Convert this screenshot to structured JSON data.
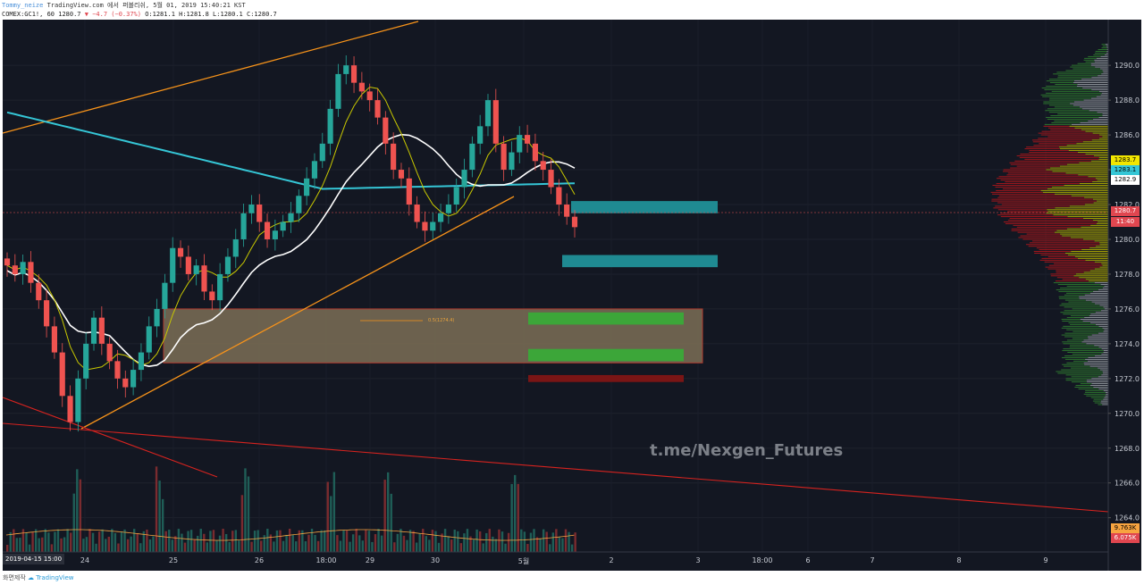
{
  "header": {
    "user": "Tommy_neize",
    "published": "TradingView.com 에서 퍼블리쉬, 5월 01, 2019 15:40:21 KST",
    "symbol": "COMEX:GC1!, 60",
    "price": "1280.7",
    "change": "−4.7 (−0.37%)",
    "ohlc": "O:1281.1 H:1281.8 L:1280.1 C:1280.7"
  },
  "price_axis": {
    "ticks": [
      "1290.0",
      "1288.0",
      "1286.0",
      "1284.0",
      "1282.0",
      "1280.0",
      "1278.0",
      "1276.0",
      "1274.0",
      "1272.0",
      "1270.0",
      "1268.0",
      "1266.0",
      "1264.0"
    ],
    "tags": [
      {
        "label": "1283.7",
        "color": "#f2e600",
        "text_color": "#000000"
      },
      {
        "label": "1283.1",
        "color": "#35c6d6",
        "text_color": "#000000"
      },
      {
        "label": "1282.9",
        "color": "#ffffff",
        "text_color": "#000000"
      },
      {
        "label": "1280.7",
        "color": "#e0464f",
        "text_color": "#ffffff"
      },
      {
        "label": "11:40",
        "color": "#e0464f",
        "text_color": "#ffffff"
      },
      {
        "label": "9.763K",
        "color": "#f7a440",
        "text_color": "#000000"
      },
      {
        "label": "6.075K",
        "color": "#e0464f",
        "text_color": "#ffffff"
      }
    ]
  },
  "time_axis": {
    "start_label": "2019-04-15   15:00",
    "ticks": [
      "24",
      "25",
      "26",
      "18:00",
      "29",
      "30",
      "5월",
      "2",
      "3",
      "18:00",
      "6",
      "7",
      "8",
      "9"
    ]
  },
  "annotations": {
    "fib_label": "0.5(1274.4)",
    "watermark": "t.me/Nexgen_Futures"
  },
  "footer": {
    "caption": "화면제작",
    "brand": "TradingView"
  },
  "colors": {
    "background": "#131722",
    "candle_up": "#26a69a",
    "candle_down": "#ef5350",
    "ema_cyan": "#35c6d6",
    "ma_white": "#ffffff",
    "ma_yellow": "#c8c800",
    "trendline_orange": "#f7931a",
    "trendline_red": "#d6231f",
    "zone_fill": "#7d6e56",
    "teal_box": "#1f8a92",
    "green_box": "#3ca639",
    "red_box": "#7a1515",
    "volume_profile_value_area": "#b9b400",
    "volume_profile_up": "#2f7d2f",
    "volume_profile_down": "#b0171b"
  },
  "chart_data": {
    "type": "candlestick",
    "symbol": "COMEX:GC1!",
    "interval": "60",
    "y_range": [
      1262.7,
      1291.6
    ],
    "last_price": 1280.7,
    "x_labels": [
      "24",
      "25",
      "26",
      "18:00",
      "29",
      "30",
      "5월",
      "2",
      "3",
      "18:00",
      "6",
      "7",
      "8",
      "9"
    ],
    "series_close_approx": [
      1278.5,
      1278.0,
      1278.7,
      1277.5,
      1276.5,
      1275.0,
      1273.5,
      1271.0,
      1269.5,
      1272.0,
      1274.0,
      1275.5,
      1274.0,
      1273.0,
      1272.0,
      1271.5,
      1272.5,
      1273.5,
      1275.0,
      1276.0,
      1277.5,
      1279.5,
      1279.0,
      1278.0,
      1278.5,
      1277.0,
      1276.5,
      1278.0,
      1279.0,
      1280.0,
      1281.5,
      1282.0,
      1281.0,
      1280.0,
      1280.5,
      1281.0,
      1281.5,
      1282.5,
      1283.5,
      1284.5,
      1285.5,
      1287.5,
      1289.5,
      1290.0,
      1289.0,
      1288.5,
      1288.0,
      1287.0,
      1285.5,
      1284.0,
      1283.5,
      1282.0,
      1281.0,
      1280.5,
      1281.0,
      1281.5,
      1282.0,
      1283.0,
      1284.0,
      1285.5,
      1286.5,
      1288.0,
      1285.5,
      1284.0,
      1285.0,
      1286.0,
      1285.5,
      1284.5,
      1284.0,
      1283.0,
      1282.0,
      1281.3,
      1280.7
    ],
    "volume_profile_value_area": [
      1277.5,
      1286.5
    ],
    "zones": [
      {
        "kind": "fib-zone",
        "from": 1272.9,
        "to": 1276.0,
        "label": "0.5(1274.4)"
      },
      {
        "kind": "resistance",
        "from": 1281.5,
        "to": 1282.2
      },
      {
        "kind": "resistance",
        "from": 1278.4,
        "to": 1279.1
      },
      {
        "kind": "support",
        "from": 1275.1,
        "to": 1275.8
      },
      {
        "kind": "support",
        "from": 1273.0,
        "to": 1273.7
      },
      {
        "kind": "stop",
        "from": 1271.8,
        "to": 1272.2
      }
    ],
    "volume_labels": [
      "9.763K",
      "6.075K"
    ]
  }
}
